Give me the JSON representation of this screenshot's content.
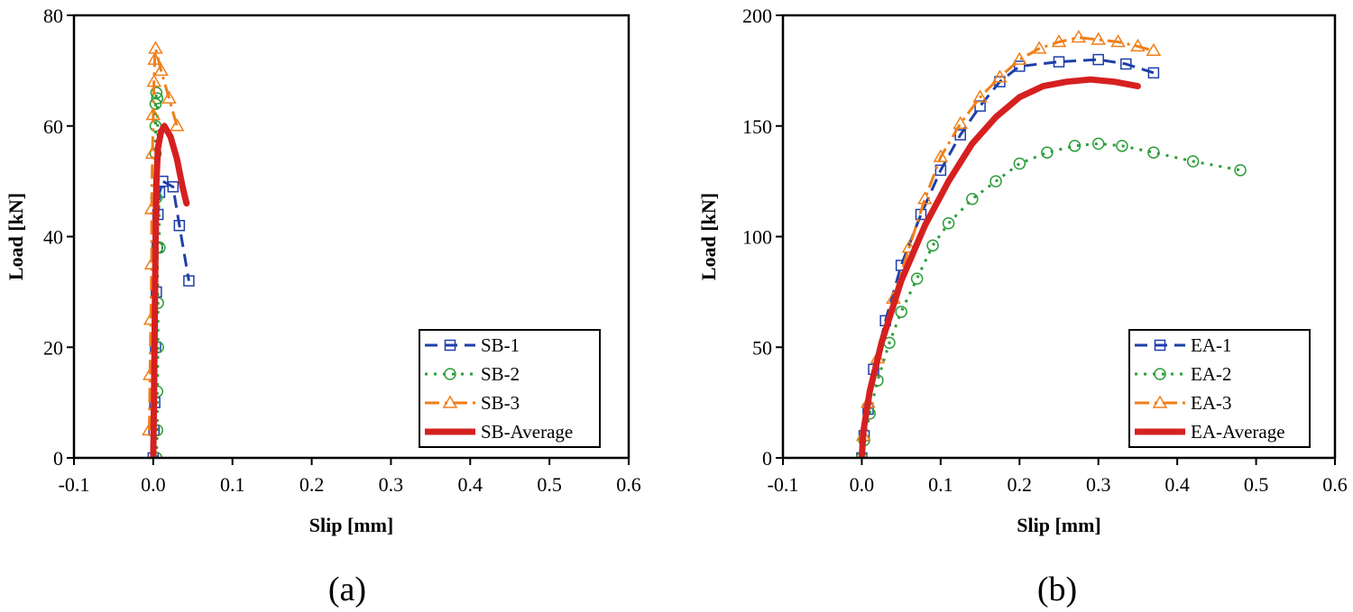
{
  "chart_data": [
    {
      "type": "line",
      "panel_label": "(a)",
      "xlabel": "Slip [mm]",
      "ylabel": "Load [kN]",
      "xlim": [
        -0.1,
        0.6
      ],
      "ylim": [
        0,
        80
      ],
      "xticks": [
        -0.1,
        0.0,
        0.1,
        0.2,
        0.3,
        0.4,
        0.5,
        0.6
      ],
      "xtick_labels": [
        "-0.1",
        "0.0",
        "0.1",
        "0.2",
        "0.3",
        "0.4",
        "0.5",
        "0.6"
      ],
      "yticks": [
        0,
        20,
        40,
        60,
        80
      ],
      "ytick_labels": [
        "0",
        "20",
        "40",
        "60",
        "80"
      ],
      "legend_position": "bottom-right",
      "series": [
        {
          "name": "SB-1",
          "color": "#1f3fa8",
          "dash": "dashed",
          "marker": "square",
          "points": [
            [
              0,
              0
            ],
            [
              0.001,
              5
            ],
            [
              0.002,
              10
            ],
            [
              0.003,
              20
            ],
            [
              0.004,
              30
            ],
            [
              0.005,
              38
            ],
            [
              0.006,
              44
            ],
            [
              0.008,
              48
            ],
            [
              0.012,
              50
            ],
            [
              0.025,
              49
            ],
            [
              0.033,
              42
            ],
            [
              0.045,
              32
            ]
          ]
        },
        {
          "name": "SB-2",
          "color": "#2a9e3a",
          "dash": "dotted",
          "marker": "circle",
          "points": [
            [
              0.004,
              0
            ],
            [
              0.005,
              5
            ],
            [
              0.005,
              12
            ],
            [
              0.006,
              20
            ],
            [
              0.006,
              28
            ],
            [
              0.005,
              38
            ],
            [
              0.004,
              47
            ],
            [
              0.003,
              55
            ],
            [
              0.003,
              60
            ],
            [
              0.003,
              64
            ],
            [
              0.004,
              66
            ],
            [
              0.005,
              65
            ],
            [
              0.008,
              38
            ]
          ]
        },
        {
          "name": "SB-3",
          "color": "#f07f1a",
          "dash": "dashdot",
          "marker": "triangle",
          "points": [
            [
              -0.005,
              5
            ],
            [
              -0.004,
              15
            ],
            [
              -0.003,
              25
            ],
            [
              -0.002,
              35
            ],
            [
              -0.002,
              45
            ],
            [
              -0.001,
              55
            ],
            [
              0.0,
              62
            ],
            [
              0.001,
              68
            ],
            [
              0.002,
              72
            ],
            [
              0.003,
              74
            ],
            [
              0.01,
              70
            ],
            [
              0.02,
              65
            ],
            [
              0.03,
              60
            ]
          ]
        },
        {
          "name": "SB-Average",
          "color": "#d62020",
          "dash": "solid",
          "marker": "none",
          "points": [
            [
              0.0,
              0
            ],
            [
              0.001,
              10
            ],
            [
              0.002,
              25
            ],
            [
              0.003,
              40
            ],
            [
              0.004,
              50
            ],
            [
              0.006,
              56
            ],
            [
              0.01,
              59
            ],
            [
              0.014,
              60
            ],
            [
              0.022,
              58
            ],
            [
              0.03,
              54
            ],
            [
              0.037,
              49
            ],
            [
              0.042,
              46
            ]
          ]
        }
      ]
    },
    {
      "type": "line",
      "panel_label": "(b)",
      "xlabel": "Slip [mm]",
      "ylabel": "Load [kN]",
      "xlim": [
        -0.1,
        0.6
      ],
      "ylim": [
        0,
        200
      ],
      "xticks": [
        -0.1,
        0.0,
        0.1,
        0.2,
        0.3,
        0.4,
        0.5,
        0.6
      ],
      "xtick_labels": [
        "-0.1",
        "0.0",
        "0.1",
        "0.2",
        "0.3",
        "0.4",
        "0.5",
        "0.6"
      ],
      "yticks": [
        0,
        50,
        100,
        150,
        200
      ],
      "ytick_labels": [
        "0",
        "50",
        "100",
        "150",
        "200"
      ],
      "legend_position": "bottom-right",
      "series": [
        {
          "name": "EA-1",
          "color": "#1f3fa8",
          "dash": "dashed",
          "marker": "square",
          "points": [
            [
              0,
              0
            ],
            [
              0.003,
              10
            ],
            [
              0.008,
              22
            ],
            [
              0.015,
              40
            ],
            [
              0.03,
              62
            ],
            [
              0.05,
              87
            ],
            [
              0.075,
              110
            ],
            [
              0.1,
              130
            ],
            [
              0.125,
              146
            ],
            [
              0.15,
              159
            ],
            [
              0.175,
              170
            ],
            [
              0.2,
              177
            ],
            [
              0.25,
              179
            ],
            [
              0.3,
              180
            ],
            [
              0.335,
              178
            ],
            [
              0.37,
              174
            ]
          ]
        },
        {
          "name": "EA-2",
          "color": "#2a9e3a",
          "dash": "dotted",
          "marker": "circle",
          "points": [
            [
              0,
              0
            ],
            [
              0.003,
              8
            ],
            [
              0.01,
              20
            ],
            [
              0.02,
              35
            ],
            [
              0.035,
              52
            ],
            [
              0.05,
              66
            ],
            [
              0.07,
              81
            ],
            [
              0.09,
              96
            ],
            [
              0.11,
              106
            ],
            [
              0.14,
              117
            ],
            [
              0.17,
              125
            ],
            [
              0.2,
              133
            ],
            [
              0.235,
              138
            ],
            [
              0.27,
              141
            ],
            [
              0.3,
              142
            ],
            [
              0.33,
              141
            ],
            [
              0.37,
              138
            ],
            [
              0.42,
              134
            ],
            [
              0.48,
              130
            ]
          ]
        },
        {
          "name": "EA-3",
          "color": "#f07f1a",
          "dash": "dashdot",
          "marker": "triangle",
          "points": [
            [
              0,
              0
            ],
            [
              0.002,
              10
            ],
            [
              0.008,
              25
            ],
            [
              0.02,
              45
            ],
            [
              0.04,
              72
            ],
            [
              0.06,
              95
            ],
            [
              0.08,
              117
            ],
            [
              0.1,
              136
            ],
            [
              0.125,
              151
            ],
            [
              0.15,
              163
            ],
            [
              0.175,
              172
            ],
            [
              0.2,
              180
            ],
            [
              0.225,
              185
            ],
            [
              0.25,
              188
            ],
            [
              0.275,
              190
            ],
            [
              0.3,
              189
            ],
            [
              0.325,
              188
            ],
            [
              0.35,
              186
            ],
            [
              0.37,
              184
            ]
          ]
        },
        {
          "name": "EA-Average",
          "color": "#d62020",
          "dash": "solid",
          "marker": "none",
          "points": [
            [
              0,
              0
            ],
            [
              0.002,
              12
            ],
            [
              0.01,
              30
            ],
            [
              0.025,
              52
            ],
            [
              0.05,
              80
            ],
            [
              0.08,
              105
            ],
            [
              0.11,
              125
            ],
            [
              0.14,
              142
            ],
            [
              0.17,
              154
            ],
            [
              0.2,
              163
            ],
            [
              0.23,
              168
            ],
            [
              0.26,
              170
            ],
            [
              0.29,
              171
            ],
            [
              0.32,
              170
            ],
            [
              0.35,
              168
            ]
          ]
        }
      ]
    }
  ]
}
